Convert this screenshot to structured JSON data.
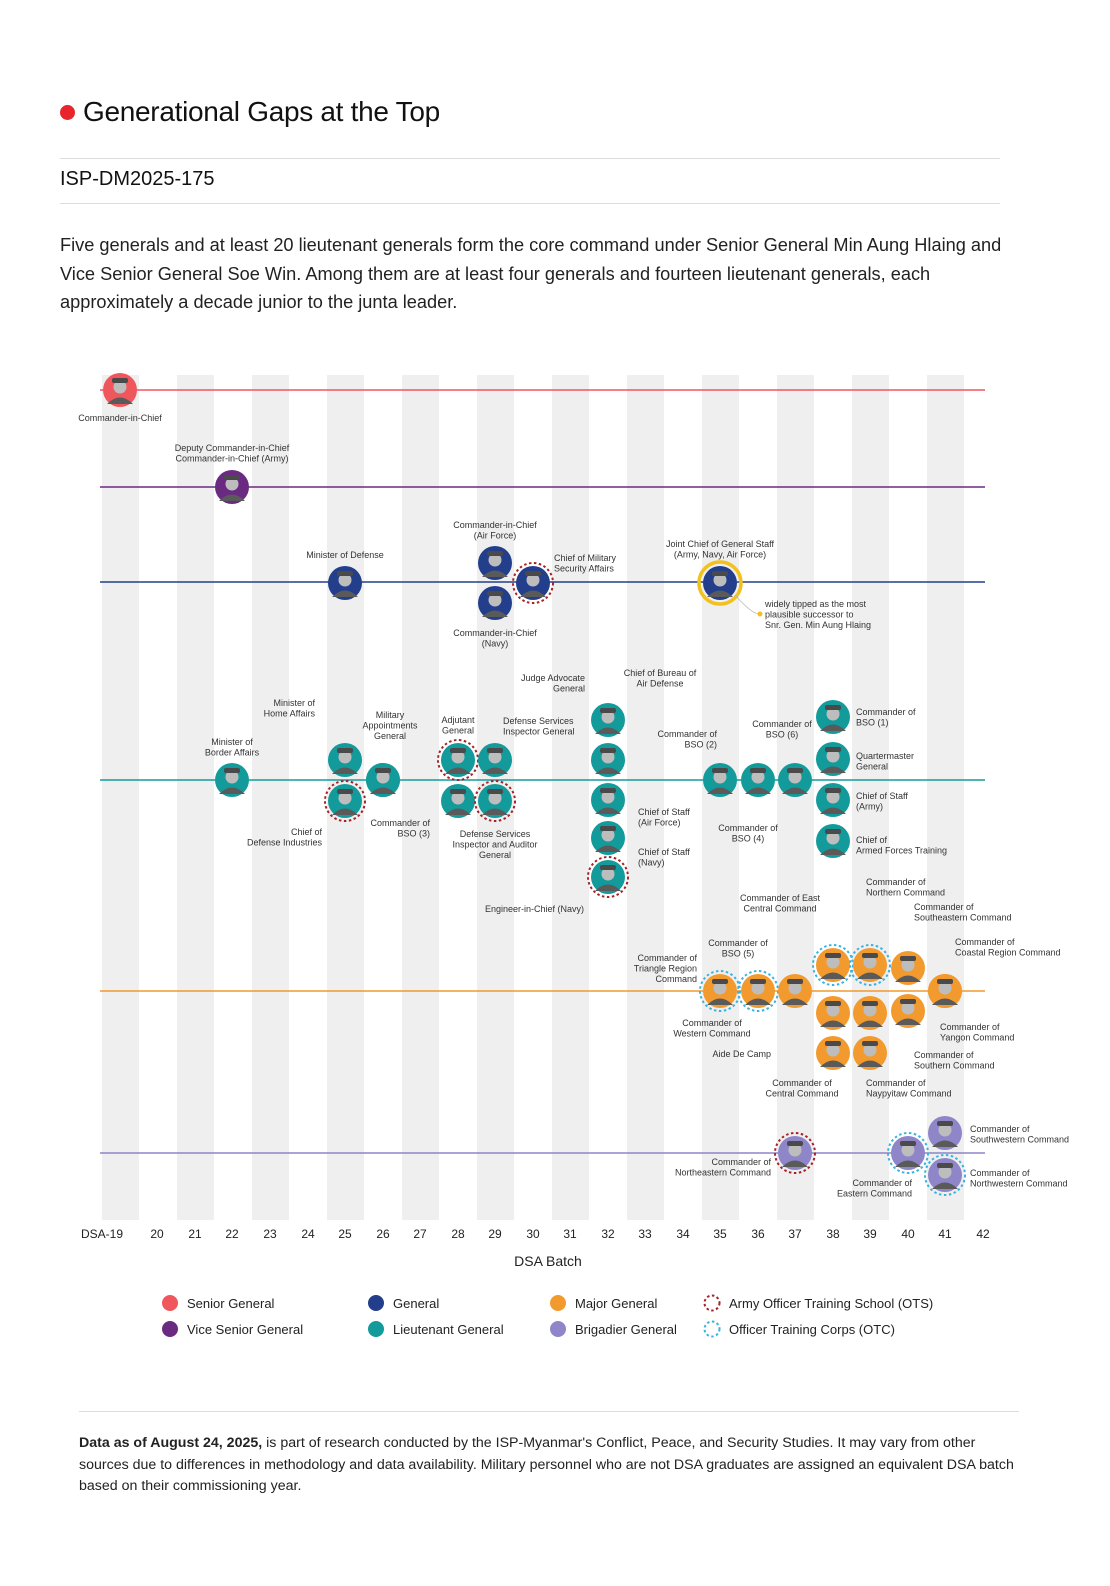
{
  "header": {
    "title": "Generational Gaps at the Top",
    "doc_id": "ISP-DM2025-175",
    "intro": "Five generals and at least 20 lieutenant generals form the core command under Senior General Min Aung Hlaing and Vice Senior General Soe Win. Among them are at least four generals and fourteen lieutenant generals, each approximately a decade junior to the junta leader."
  },
  "footer": {
    "lead": "Data as of August 24, 2025,",
    "text": " is part of research conducted by the ISP-Myanmar's Conflict, Peace, and Security Studies. It may vary from other sources due to differences in methodology and data availability. Military personnel who are not DSA graduates are assigned an equivalent DSA batch based on their commissioning year."
  },
  "colors": {
    "senior_general": "#f0575d",
    "vice_senior_general": "#6a2a82",
    "general": "#233f8c",
    "lieutenant_general": "#139b9b",
    "major_general": "#f29a2e",
    "brigadier_general": "#8e86c8",
    "ots": "#a52226",
    "otc": "#3ab3e0",
    "highlight": "#f2c11d"
  },
  "chart_data": {
    "type": "scatter",
    "xlabel": "DSA Batch",
    "ticks": [
      "DSA-19",
      "20",
      "21",
      "22",
      "23",
      "24",
      "25",
      "26",
      "27",
      "28",
      "29",
      "30",
      "31",
      "32",
      "33",
      "34",
      "35",
      "36",
      "37",
      "38",
      "39",
      "40",
      "41",
      "42"
    ],
    "rank_lines": [
      "senior_general",
      "vice_senior_general",
      "general",
      "lieutenant_general",
      "major_general",
      "brigadier_general"
    ],
    "legend": [
      {
        "label": "Senior General",
        "key": "senior_general",
        "style": "fill"
      },
      {
        "label": "Vice Senior General",
        "key": "vice_senior_general",
        "style": "fill"
      },
      {
        "label": "General",
        "key": "general",
        "style": "fill"
      },
      {
        "label": "Lieutenant General",
        "key": "lieutenant_general",
        "style": "fill"
      },
      {
        "label": "Major General",
        "key": "major_general",
        "style": "fill"
      },
      {
        "label": "Brigadier General",
        "key": "brigadier_general",
        "style": "fill"
      },
      {
        "label": "Army Officer Training School (OTS)",
        "key": "ots",
        "style": "dash"
      },
      {
        "label": "Officer Training Corps (OTC)",
        "key": "otc",
        "style": "dash"
      }
    ],
    "annotation": "widely tipped as the most plausible successor to Snr. Gen. Min Aung Hlaing",
    "points": [
      {
        "batch": 19,
        "rank": "senior_general",
        "label": "Commander-in-Chief"
      },
      {
        "batch": 22,
        "rank": "vice_senior_general",
        "label": "Deputy Commander-in-Chief\nCommander-in-Chief (Army)"
      },
      {
        "batch": 25,
        "rank": "general",
        "label": "Minister of Defense"
      },
      {
        "batch": 29,
        "rank": "general",
        "label": "Commander-in-Chief\n(Air Force)"
      },
      {
        "batch": 29,
        "rank": "general",
        "label": "Commander-in-Chief\n(Navy)"
      },
      {
        "batch": 30,
        "rank": "general",
        "ring": "ots",
        "label": "Chief of Military\nSecurity Affairs"
      },
      {
        "batch": 35,
        "rank": "general",
        "ring": "highlight",
        "label": "Joint Chief of General Staff\n(Army, Navy, Air Force)"
      },
      {
        "batch": 22,
        "rank": "lieutenant_general",
        "label": "Minister of\nBorder Affairs"
      },
      {
        "batch": 25,
        "rank": "lieutenant_general",
        "label": "Minister of\nHome Affairs"
      },
      {
        "batch": 25,
        "rank": "lieutenant_general",
        "ring": "ots",
        "label": "Chief of\nDefense Industries"
      },
      {
        "batch": 26,
        "rank": "lieutenant_general",
        "label": "Military\nAppointments\nGeneral"
      },
      {
        "batch": 26,
        "rank": "lieutenant_general",
        "label": "Commander of\nBSO (3)"
      },
      {
        "batch": 28,
        "rank": "lieutenant_general",
        "ring": "ots",
        "label": "Adjutant\nGeneral"
      },
      {
        "batch": 28,
        "rank": "lieutenant_general",
        "label": ""
      },
      {
        "batch": 29,
        "rank": "lieutenant_general",
        "label": "Defense Services\nInspector General"
      },
      {
        "batch": 29,
        "rank": "lieutenant_general",
        "ring": "ots",
        "label": "Defense Services\nInspector and Auditor\nGeneral"
      },
      {
        "batch": 32,
        "rank": "lieutenant_general",
        "label": "Judge Advocate\nGeneral"
      },
      {
        "batch": 32,
        "rank": "lieutenant_general",
        "label": "Chief of Bureau of\nAir Defense"
      },
      {
        "batch": 32,
        "rank": "lieutenant_general",
        "label": "Chief of Staff\n(Air Force)"
      },
      {
        "batch": 32,
        "rank": "lieutenant_general",
        "label": "Chief of Staff\n(Navy)"
      },
      {
        "batch": 32,
        "rank": "lieutenant_general",
        "ring": "ots",
        "label": "Engineer-in-Chief (Navy)"
      },
      {
        "batch": 35,
        "rank": "lieutenant_general",
        "label": "Commander of\nBSO (2)"
      },
      {
        "batch": 36,
        "rank": "lieutenant_general",
        "label": "Commander of\nBSO (4)"
      },
      {
        "batch": 37,
        "rank": "lieutenant_general",
        "label": "Commander of\nBSO (6)"
      },
      {
        "batch": 38,
        "rank": "lieutenant_general",
        "label": "Commander of\nBSO (1)"
      },
      {
        "batch": 38,
        "rank": "lieutenant_general",
        "label": "Quartermaster\nGeneral"
      },
      {
        "batch": 38,
        "rank": "lieutenant_general",
        "label": "Chief of Staff\n(Army)"
      },
      {
        "batch": 38,
        "rank": "lieutenant_general",
        "label": "Chief of\nArmed Forces Training"
      },
      {
        "batch": 35,
        "rank": "major_general",
        "ring": "otc",
        "label": "Commander of\nTriangle Region\nCommand"
      },
      {
        "batch": 36,
        "rank": "major_general",
        "ring": "otc",
        "label": "Commander of\nBSO (5)"
      },
      {
        "batch": 37,
        "rank": "major_general",
        "label": "Commander of\nWestern Command"
      },
      {
        "batch": 38,
        "rank": "major_general",
        "ring": "otc",
        "label": "Commander of East\nCentral Command"
      },
      {
        "batch": 38,
        "rank": "major_general",
        "label": "Aide De Camp"
      },
      {
        "batch": 38,
        "rank": "major_general",
        "label": "Commander of\nCentral Command"
      },
      {
        "batch": 39,
        "rank": "major_general",
        "ring": "otc",
        "label": "Commander of\nNorthern Command"
      },
      {
        "batch": 39,
        "rank": "major_general",
        "label": ""
      },
      {
        "batch": 39,
        "rank": "major_general",
        "label": "Commander of\nNaypyitaw Command"
      },
      {
        "batch": 40,
        "rank": "major_general",
        "label": "Commander of\nSoutheastern Command"
      },
      {
        "batch": 40,
        "rank": "major_general",
        "label": "Commander of\nSouthern Command"
      },
      {
        "batch": 41,
        "rank": "major_general",
        "label": "Commander of\nCoastal Region Command"
      },
      {
        "batch": 41,
        "rank": "major_general",
        "label": "Commander of\nYangon Command"
      },
      {
        "batch": 37,
        "rank": "brigadier_general",
        "ring": "ots",
        "label": "Commander of\nNortheastern Command"
      },
      {
        "batch": 40,
        "rank": "brigadier_general",
        "ring": "otc",
        "label": "Commander of\nEastern Command"
      },
      {
        "batch": 41,
        "rank": "brigadier_general",
        "label": "Commander of\nSouthwestern Command"
      },
      {
        "batch": 41,
        "rank": "brigadier_general",
        "ring": "otc",
        "label": "Commander of\nNorthwestern Command"
      }
    ]
  }
}
